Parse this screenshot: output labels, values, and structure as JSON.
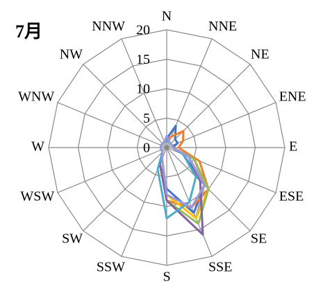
{
  "chart_data": {
    "type": "radar",
    "title": "7月",
    "categories": [
      "N",
      "NNE",
      "NE",
      "ENE",
      "E",
      "ESE",
      "SE",
      "SSE",
      "S",
      "SSW",
      "SW",
      "WSW",
      "W",
      "WNW",
      "NW",
      "NNW"
    ],
    "ylim": [
      0,
      20
    ],
    "yticks": [
      0,
      5,
      10,
      15,
      20
    ],
    "grid": true,
    "series": [
      {
        "color": "#4472c4",
        "values": [
          1.5,
          4,
          2,
          2,
          1,
          3,
          9,
          12,
          7,
          3,
          1,
          1,
          1,
          1,
          1,
          1
        ]
      },
      {
        "color": "#ed7d31",
        "values": [
          1,
          2,
          4,
          3,
          2,
          6,
          10,
          11,
          9,
          3,
          1,
          1,
          1,
          1,
          1,
          1
        ]
      },
      {
        "color": "#a5a5a5",
        "values": [
          1,
          1,
          1,
          1,
          1,
          5,
          9,
          13,
          8,
          3,
          1,
          1,
          1,
          1,
          1,
          1
        ]
      },
      {
        "color": "#ffc000",
        "values": [
          1,
          1,
          1,
          1,
          1,
          5,
          10,
          13,
          8,
          3,
          1,
          1,
          1,
          1,
          1,
          1
        ]
      },
      {
        "color": "#9bbb59",
        "values": [
          1,
          1,
          1,
          1,
          1,
          5,
          10,
          14,
          9,
          3,
          1,
          1,
          1,
          1,
          1,
          1
        ]
      },
      {
        "color": "#8064a2",
        "values": [
          1,
          1,
          1,
          1,
          1,
          4,
          8,
          16,
          9,
          3,
          1,
          1,
          1,
          1,
          1,
          1
        ]
      },
      {
        "color": "#4bacc6",
        "values": [
          1,
          1,
          1,
          1,
          1,
          3,
          7,
          10,
          12,
          4,
          1,
          1,
          1,
          1,
          1,
          1
        ]
      },
      {
        "color": "#9999dd",
        "values": [
          2,
          1,
          1,
          1,
          1,
          4,
          9,
          11,
          8,
          2,
          1,
          1,
          1,
          1,
          1,
          1
        ]
      }
    ]
  }
}
